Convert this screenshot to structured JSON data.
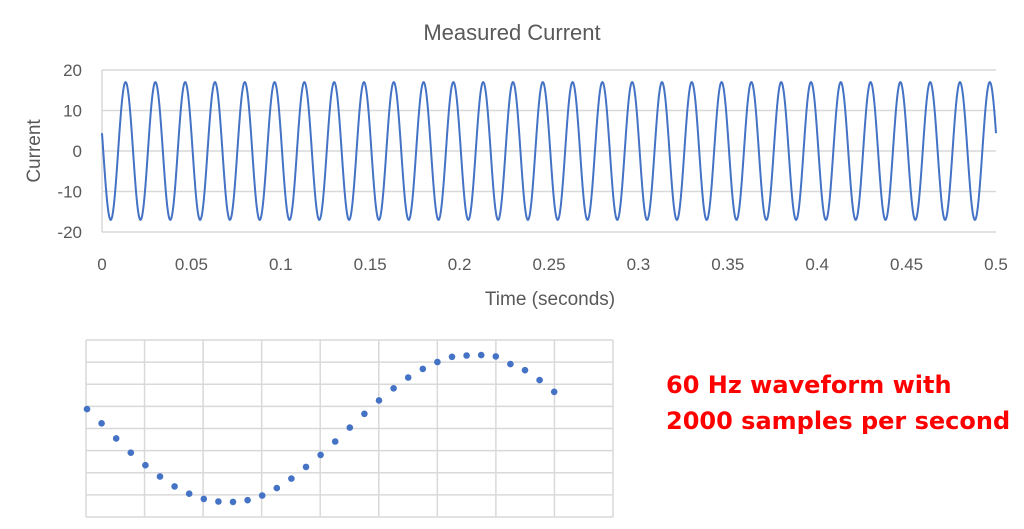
{
  "chart_data": [
    {
      "type": "line",
      "title": "Measured Current",
      "xlabel": "Time (seconds)",
      "ylabel": "Current",
      "xlim": [
        0,
        0.5
      ],
      "ylim": [
        -20,
        20
      ],
      "x_ticks": [
        "0",
        "0.05",
        "0.1",
        "0.15",
        "0.2",
        "0.25",
        "0.3",
        "0.35",
        "0.4",
        "0.45",
        "0.5"
      ],
      "y_ticks": [
        "20",
        "10",
        "0",
        "-10",
        "-20"
      ],
      "grid": "horizontal",
      "legend": null,
      "series": [
        {
          "name": "Current",
          "color": "#4472c4",
          "function": "amplitude * sin(2*pi*frequency*t + phase)",
          "amplitude": 17,
          "frequency_hz": 60,
          "phase_rad": 2.88,
          "t_start": 0,
          "t_end": 0.5
        }
      ]
    },
    {
      "type": "scatter",
      "title": "",
      "xlabel": "",
      "ylabel": "",
      "grid": "both",
      "grid_columns": 9,
      "grid_rows": 8,
      "description": "Zoomed view of one cycle of sampled waveform (2000 samples per second)",
      "series": [
        {
          "name": "Samples",
          "color": "#4472c4",
          "sample_index": [
            0,
            1,
            2,
            3,
            4,
            5,
            6,
            7,
            8,
            9,
            10,
            11,
            12,
            13,
            14,
            15,
            16,
            17,
            18,
            19,
            20,
            21,
            22,
            23,
            24,
            25,
            26,
            27,
            28,
            29,
            30,
            31,
            32
          ],
          "values": [
            4.5,
            1.2,
            -2.3,
            -5.6,
            -8.5,
            -11.1,
            -13.4,
            -15.1,
            -16.3,
            -16.9,
            -17.0,
            -16.6,
            -15.5,
            -13.8,
            -11.6,
            -8.9,
            -6.1,
            -3.0,
            0.2,
            3.4,
            6.5,
            9.3,
            11.8,
            13.8,
            15.4,
            16.6,
            16.9,
            17.0,
            16.7,
            14.9,
            13.5,
            11.2,
            8.5
          ]
        }
      ]
    }
  ],
  "top_chart": {
    "title": "Measured Current",
    "xlabel": "Time (seconds)",
    "ylabel": "Current",
    "x_ticks": [
      "0",
      "0.05",
      "0.1",
      "0.15",
      "0.2",
      "0.25",
      "0.3",
      "0.35",
      "0.4",
      "0.45",
      "0.5"
    ],
    "y_ticks": [
      "20",
      "10",
      "0",
      "-10",
      "-20"
    ]
  },
  "annotation": {
    "line1": "60 Hz waveform with",
    "line2": "2000 samples per second",
    "color": "#ff0000"
  },
  "colors": {
    "series": "#4472c4",
    "text": "#595959",
    "grid": "#d9d9d9",
    "annotation": "#ff0000"
  }
}
